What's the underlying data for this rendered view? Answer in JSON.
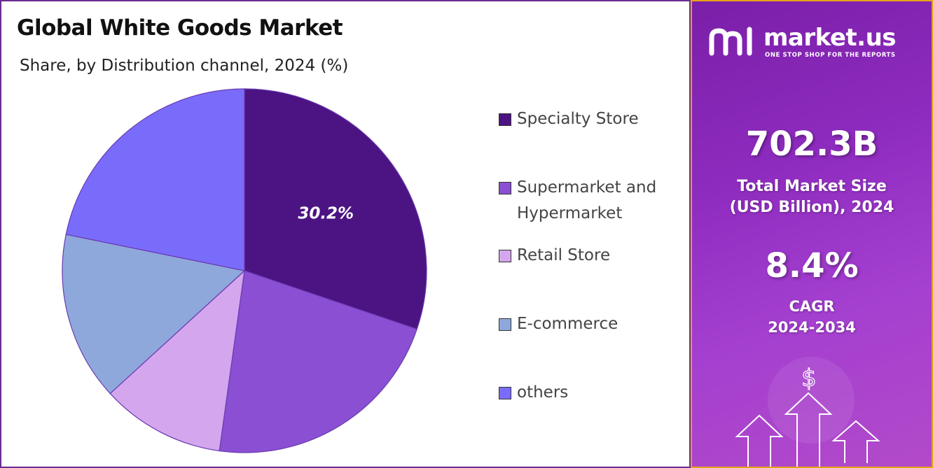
{
  "title": "Global White Goods Market",
  "subtitle": "Share, by Distribution channel, 2024 (%)",
  "chart_data": {
    "type": "pie",
    "title": "Global White Goods Market",
    "subtitle": "Share, by Distribution channel, 2024 (%)",
    "legend_position": "right",
    "slices": [
      {
        "label": "Specialty Store",
        "value": 30.2,
        "color": "#4b1482",
        "data_label": "30.2%"
      },
      {
        "label": "Supermarket and Hypermarket",
        "value": 22.0,
        "color": "#8a4fd3",
        "data_label": ""
      },
      {
        "label": "Retail Store",
        "value": 11.0,
        "color": "#d4a6ee",
        "data_label": ""
      },
      {
        "label": "E-commerce",
        "value": 15.0,
        "color": "#8fa8dc",
        "data_label": ""
      },
      {
        "label": "others",
        "value": 21.8,
        "color": "#7a6cfb",
        "data_label": ""
      }
    ]
  },
  "legend": [
    {
      "label_line1": "Specialty Store",
      "label_line2": "",
      "color": "#4b1482"
    },
    {
      "label_line1": "Supermarket and",
      "label_line2": "Hypermarket",
      "color": "#8a4fd3"
    },
    {
      "label_line1": "Retail Store",
      "label_line2": "",
      "color": "#d4a6ee"
    },
    {
      "label_line1": "E-commerce",
      "label_line2": "",
      "color": "#8fa8dc"
    },
    {
      "label_line1": "others",
      "label_line2": "",
      "color": "#7a6cfb"
    }
  ],
  "sidebar": {
    "brand_name": "market.us",
    "brand_tagline": "ONE STOP SHOP FOR THE REPORTS",
    "market_size_value": "702.3B",
    "market_size_label_line1": "Total Market Size",
    "market_size_label_line2": "(USD Billion), 2024",
    "cagr_value": "8.4%",
    "cagr_label_line1": "CAGR",
    "cagr_label_line2": "2024-2034",
    "dollar_symbol": "$"
  }
}
